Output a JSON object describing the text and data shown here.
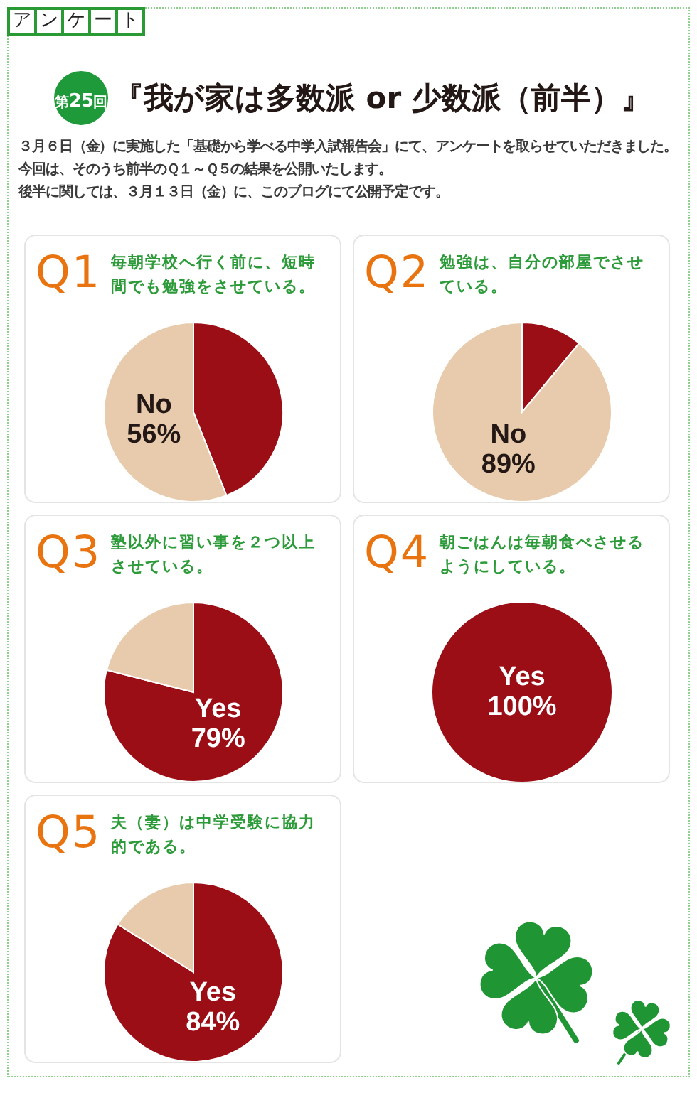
{
  "chart_data": [
    {
      "type": "other",
      "title": "『我が家は多数派 or 少数派（前半）』",
      "annotations": [
        "アンケート",
        "第25回",
        "３月６日（金）に実施した「基礎から学べる中学入試報告会」にて、アンケートを取らせていただきました。",
        "今回は、そのうち前半のＱ１～Ｑ５の結果を公開いたします。",
        "後半に関しては、３月１３日（金）に、このブログにて公開予定です。"
      ]
    },
    {
      "type": "pie",
      "title": "Q1",
      "subtitle": "毎朝学校へ行く前に、短時間でも勉強をさせている。",
      "categories": [
        null,
        "No"
      ],
      "values": [
        44,
        56
      ],
      "colors": [
        "#9c0e16",
        "#e8cbac"
      ],
      "value_labels": [
        null,
        "56%"
      ]
    },
    {
      "type": "pie",
      "title": "Q2",
      "subtitle": "勉強は、自分の部屋でさせている。",
      "categories": [
        null,
        "No"
      ],
      "values": [
        11,
        89
      ],
      "colors": [
        "#9c0e16",
        "#e8cbac"
      ],
      "value_labels": [
        null,
        "89%"
      ]
    },
    {
      "type": "pie",
      "title": "Q3",
      "subtitle": "塾以外に習い事を２つ以上させている。",
      "categories": [
        "Yes",
        null
      ],
      "values": [
        79,
        21
      ],
      "colors": [
        "#9c0e16",
        "#e8cbac"
      ],
      "value_labels": [
        "79%",
        null
      ]
    },
    {
      "type": "pie",
      "title": "Q4",
      "subtitle": "朝ごはんは毎朝食べさせるようにしている。",
      "categories": [
        "Yes"
      ],
      "values": [
        100
      ],
      "colors": [
        "#9c0e16"
      ],
      "value_labels": [
        "100%"
      ]
    },
    {
      "type": "pie",
      "title": "Q5",
      "subtitle": "夫（妻）は中学受験に協力的である。",
      "categories": [
        "Yes",
        null
      ],
      "values": [
        84,
        16
      ],
      "colors": [
        "#9c0e16",
        "#e8cbac"
      ],
      "value_labels": [
        "84%",
        null
      ]
    }
  ]
}
